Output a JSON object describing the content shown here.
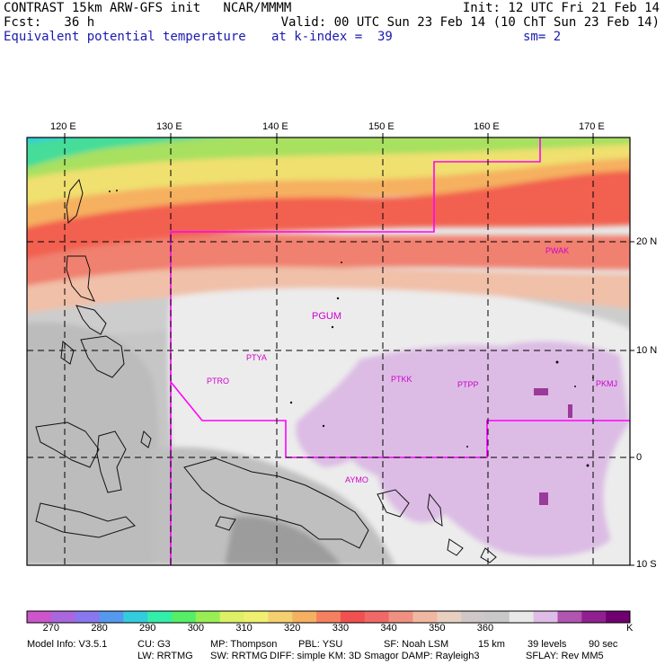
{
  "header": {
    "line1_left": "CONTRAST 15km ARW-GFS init   NCAR/MMMM",
    "line1_right": "Init: 12 UTC Fri 21 Feb 14",
    "line2_left": "Fcst:   36 h",
    "line2_right": "Valid: 00 UTC Sun 23 Feb 14 (10 ChT Sun 23 Feb 14)",
    "line3_left": "Equivalent potential temperature",
    "line3_mid": "at k-index =  39",
    "line3_right": "sm= 2"
  },
  "axes": {
    "lon_labels": [
      "120 E",
      "130 E",
      "140 E",
      "150 E",
      "160 E",
      "170 E"
    ],
    "lat_labels": [
      "20 N",
      "10 N",
      "0",
      "10 S"
    ]
  },
  "stations": [
    "PWAK",
    "PGUM",
    "PTYA",
    "PTRO",
    "PTKK",
    "PTPP",
    "PKMJ",
    "AYMO"
  ],
  "colorbar": {
    "labels": [
      "270",
      "280",
      "290",
      "300",
      "310",
      "320",
      "330",
      "340",
      "350",
      "360"
    ],
    "unit": "K",
    "colors": [
      "#cc55cc",
      "#aa66dd",
      "#8877ee",
      "#5599ee",
      "#33ccdd",
      "#33eeaa",
      "#55ee66",
      "#99ee55",
      "#ddf066",
      "#f0f070",
      "#f5d070",
      "#f5b060",
      "#f58060",
      "#f05050",
      "#f06868",
      "#f09080",
      "#f0b8a0",
      "#e8d0c0",
      "#d0c8c8",
      "#c8c8c8",
      "#e8e8e8",
      "#e0bce8",
      "#b055b0",
      "#902090",
      "#700070"
    ]
  },
  "footer": {
    "line1": [
      "Model Info: V3.5.1",
      "CU: G3",
      "MP: Thompson",
      "PBL: YSU",
      "SF: Noah LSM",
      "15 km",
      "39 levels",
      "90 sec"
    ],
    "line2": [
      "LW: RRTMG",
      "SW: RRTMG",
      "DIFF: simple KM: 3D Smagor DAMP: Rayleigh3",
      "SFLAY: Rev MM5"
    ]
  }
}
